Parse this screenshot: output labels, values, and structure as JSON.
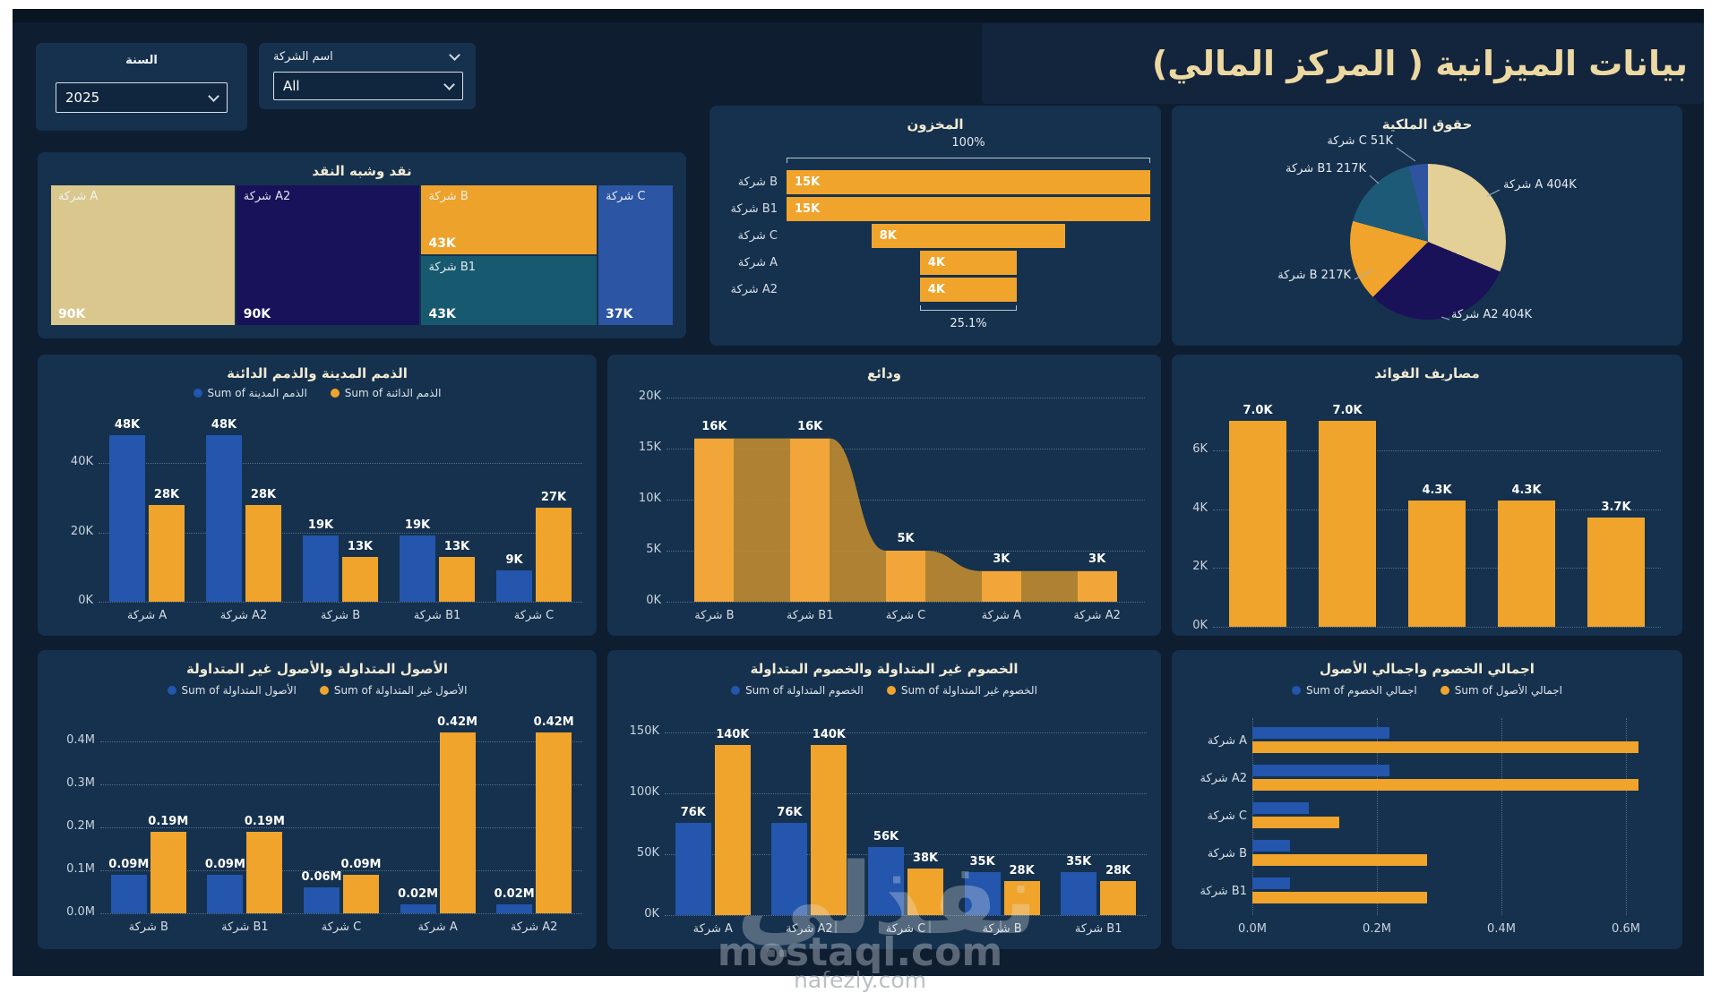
{
  "page": {
    "title": "بيانات الميزانية ( المركز المالي)",
    "watermark": {
      "brand": "نفذلي",
      "site_primary": "mostaql.com",
      "site_secondary": "nafezly.com"
    }
  },
  "filters": {
    "year": {
      "label": "السنة",
      "value": "2025"
    },
    "company": {
      "label": "اسم الشركة",
      "value": "All"
    }
  },
  "colors": {
    "background": "#0e1d30",
    "panel": "#15314d",
    "accent_orange": "#f0a42c",
    "accent_blue": "#2356ac",
    "title_text": "#ecd9a2"
  },
  "chart_data": [
    {
      "id": "cash",
      "type": "treemap",
      "title": "نقد وشبه النقد",
      "items": [
        {
          "label": "شركة A",
          "value": 90000,
          "value_label": "90K",
          "color": "#d9c78e"
        },
        {
          "label": "شركة A2",
          "value": 90000,
          "value_label": "90K",
          "color": "#18125a"
        },
        {
          "label": "شركة B",
          "value": 43000,
          "value_label": "43K",
          "color": "#eda22c"
        },
        {
          "label": "شركة B1",
          "value": 43000,
          "value_label": "43K",
          "color": "#17596f"
        },
        {
          "label": "شركة C",
          "value": 37000,
          "value_label": "37K",
          "color": "#2c55a4"
        }
      ]
    },
    {
      "id": "inventory",
      "type": "funnel",
      "title": "المخزون",
      "top_label": "100%",
      "bottom_label": "25.1%",
      "color": "#f0a42c",
      "categories": [
        "شركة B",
        "شركة B1",
        "شركة C",
        "شركة A",
        "شركة A2"
      ],
      "values": [
        15000,
        15000,
        8000,
        4000,
        4000
      ],
      "value_labels": [
        "15K",
        "15K",
        "8K",
        "4K",
        "4K"
      ]
    },
    {
      "id": "equity",
      "type": "pie",
      "title": "حقوق الملكية",
      "slices": [
        {
          "label": "شركة A 404K",
          "value": 404000,
          "color": "#e2d096"
        },
        {
          "label": "شركة A2 404K",
          "value": 404000,
          "color": "#191259"
        },
        {
          "label": "شركة B 217K",
          "value": 217000,
          "color": "#f0a42c"
        },
        {
          "label": "شركة B1 217K",
          "value": 217000,
          "color": "#1d5a78"
        },
        {
          "label": "شركة C 51K",
          "value": 51000,
          "color": "#2e54a0"
        }
      ]
    },
    {
      "id": "receivables",
      "type": "bar",
      "title": "الذمم المدينة والذمم الدائنة",
      "categories": [
        "شركة A",
        "شركة A2",
        "شركة B",
        "شركة B1",
        "شركة C"
      ],
      "series": [
        {
          "name": "Sum of الذمم المدينة",
          "color": "#2356ac",
          "values": [
            48000,
            48000,
            19000,
            19000,
            9000
          ],
          "value_labels": [
            "48K",
            "48K",
            "19K",
            "19K",
            "9K"
          ]
        },
        {
          "name": "Sum of الذمم الدائنة",
          "color": "#f0a42c",
          "values": [
            28000,
            28000,
            13000,
            13000,
            27000
          ],
          "value_labels": [
            "28K",
            "28K",
            "13K",
            "13K",
            "27K"
          ]
        }
      ],
      "yticks": [
        {
          "label": "0K",
          "v": 0
        },
        {
          "label": "20K",
          "v": 20000
        },
        {
          "label": "40K",
          "v": 40000
        }
      ],
      "ylim": [
        0,
        52000
      ],
      "grid": true,
      "legend_position": "top"
    },
    {
      "id": "deposits",
      "type": "area",
      "title": "ودائع",
      "categories": [
        "شركة B",
        "شركة B1",
        "شركة C",
        "شركة A",
        "شركة A2"
      ],
      "values": [
        16000,
        16000,
        5000,
        3000,
        3000
      ],
      "value_labels": [
        "16K",
        "16K",
        "5K",
        "3K",
        "3K"
      ],
      "yticks": [
        {
          "label": "0K",
          "v": 0
        },
        {
          "label": "5K",
          "v": 5000
        },
        {
          "label": "10K",
          "v": 10000
        },
        {
          "label": "15K",
          "v": 15000
        },
        {
          "label": "20K",
          "v": 20000
        }
      ],
      "ylim": [
        0,
        20000
      ],
      "color": "#f2a63a",
      "area_color": "#bf8c30",
      "grid": true
    },
    {
      "id": "interest",
      "type": "bar",
      "title": "مصاريف الفوائد",
      "categories": null,
      "series": [
        {
          "name": "",
          "color": "#f0a42c",
          "values": [
            7000,
            7000,
            4300,
            4300,
            3700
          ],
          "value_labels": [
            "7.0K",
            "7.0K",
            "4.3K",
            "4.3K",
            "3.7K"
          ]
        }
      ],
      "yticks": [
        {
          "label": "0K",
          "v": 0
        },
        {
          "label": "2K",
          "v": 2000
        },
        {
          "label": "4K",
          "v": 4000
        },
        {
          "label": "6K",
          "v": 6000
        }
      ],
      "ylim": [
        0,
        7700
      ],
      "grid": true
    },
    {
      "id": "assets",
      "type": "bar",
      "title": "الأصول المتداولة والأصول غير المتداولة",
      "categories": [
        "شركة B",
        "شركة B1",
        "شركة C",
        "شركة A",
        "شركة A2"
      ],
      "series": [
        {
          "name": "Sum of الأصول المتداولة",
          "color": "#2356ac",
          "values": [
            0.09,
            0.09,
            0.06,
            0.02,
            0.02
          ],
          "value_labels": [
            "0.09M",
            "0.09M",
            "0.06M",
            "0.02M",
            "0.02M"
          ]
        },
        {
          "name": "Sum of الأصول غير المتداولة",
          "color": "#f0a42c",
          "values": [
            0.19,
            0.19,
            0.09,
            0.42,
            0.42
          ],
          "value_labels": [
            "0.19M",
            "0.19M",
            "0.09M",
            "0.42M",
            "0.42M"
          ]
        }
      ],
      "yticks": [
        {
          "label": "0.0M",
          "v": 0
        },
        {
          "label": "0.1M",
          "v": 0.1
        },
        {
          "label": "0.2M",
          "v": 0.2
        },
        {
          "label": "0.3M",
          "v": 0.3
        },
        {
          "label": "0.4M",
          "v": 0.4
        }
      ],
      "ylim": [
        0,
        0.46
      ],
      "grid": true,
      "legend_position": "top"
    },
    {
      "id": "liabilities",
      "type": "bar",
      "title": "الخصوم غير المتداولة والخصوم المتداولة",
      "categories": [
        "شركة A",
        "شركة A2",
        "شركة C",
        "شركة B",
        "شركة B1"
      ],
      "series": [
        {
          "name": "Sum of الخصوم المتداولة",
          "color": "#2356ac",
          "values": [
            76000,
            76000,
            56000,
            35000,
            35000
          ],
          "value_labels": [
            "76K",
            "76K",
            "56K",
            "35K",
            "35K"
          ]
        },
        {
          "name": "Sum of الخصوم غير المتداولة",
          "color": "#f0a42c",
          "values": [
            140000,
            140000,
            38000,
            28000,
            28000
          ],
          "value_labels": [
            "140K",
            "140K",
            "38K",
            "28K",
            "28K"
          ]
        }
      ],
      "yticks": [
        {
          "label": "0K",
          "v": 0
        },
        {
          "label": "50K",
          "v": 50000
        },
        {
          "label": "100K",
          "v": 100000
        },
        {
          "label": "150K",
          "v": 150000
        }
      ],
      "ylim": [
        0,
        160000
      ],
      "grid": true,
      "legend_position": "top"
    },
    {
      "id": "totals",
      "type": "hbar",
      "title": "اجمالي الخصوم واجمالي الأصول",
      "categories": [
        "شركة A",
        "شركة A2",
        "شركة C",
        "شركة B",
        "شركة B1"
      ],
      "series": [
        {
          "name": "Sum of اجمالي الخصوم",
          "color": "#2356ac",
          "values": [
            0.22,
            0.22,
            0.09,
            0.06,
            0.06
          ]
        },
        {
          "name": "Sum of اجمالي الأصول",
          "color": "#f0a42c",
          "values": [
            0.62,
            0.62,
            0.14,
            0.28,
            0.28
          ]
        }
      ],
      "xticks": [
        {
          "label": "0.0M",
          "v": 0
        },
        {
          "label": "0.2M",
          "v": 0.2
        },
        {
          "label": "0.4M",
          "v": 0.4
        },
        {
          "label": "0.6M",
          "v": 0.6
        }
      ],
      "xlim": [
        0,
        0.66
      ],
      "grid": true,
      "legend_position": "top"
    }
  ]
}
